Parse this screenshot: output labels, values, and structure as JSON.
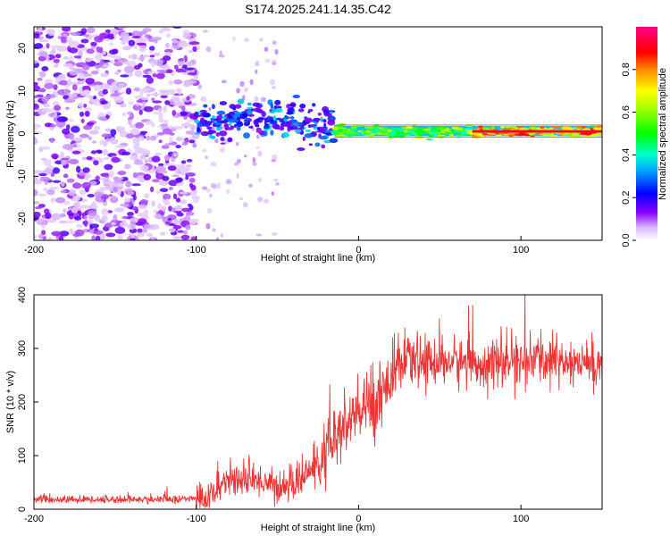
{
  "title": "S174.2025.241.14.35.C42",
  "chart_data": [
    {
      "type": "heatmap",
      "name": "spectrogram",
      "xlabel": "Height of straight line (km)",
      "ylabel": "Frequency (Hz)",
      "xlim": [
        -200,
        150
      ],
      "ylim": [
        -25,
        25
      ],
      "xticks": [
        -200,
        -100,
        0,
        100
      ],
      "xtick_labels": [
        "-200",
        "-100",
        "0",
        "100"
      ],
      "yticks": [
        -20,
        -10,
        0,
        10,
        20
      ],
      "ytick_labels": [
        "-20",
        "-10",
        "0",
        "10",
        "20"
      ],
      "colorbar": {
        "label": "Normalized spectral amplitude",
        "range": [
          0,
          1
        ],
        "ticks": [
          0.0,
          0.2,
          0.4,
          0.6,
          0.8
        ],
        "tick_labels": [
          "0.0",
          "0.2",
          "0.4",
          "0.6",
          "0.8"
        ],
        "colormap": "rainbow: white-violet-blue-cyan-green-yellow-red-pink"
      },
      "regions": [
        {
          "description": "diffuse noise",
          "x_range": [
            -200,
            -100
          ],
          "amplitude_range": [
            0.05,
            0.15
          ]
        },
        {
          "description": "scattered echoes near +3 Hz",
          "x_range": [
            -100,
            -15
          ],
          "freq_center": 3,
          "amplitude_range": [
            0.15,
            0.3
          ]
        },
        {
          "description": "narrow band near +0.5 Hz",
          "x_range": [
            -15,
            150
          ],
          "freq_center": 0.5,
          "amplitude_range": [
            0.4,
            1.0
          ]
        }
      ]
    },
    {
      "type": "line",
      "name": "snr",
      "xlabel": "Height of straight line (km)",
      "ylabel": "SNR (10 * v/v)",
      "xlim": [
        -200,
        150
      ],
      "ylim": [
        0,
        400
      ],
      "xticks": [
        -200,
        -100,
        0,
        100
      ],
      "xtick_labels": [
        "-200",
        "-100",
        "0",
        "100"
      ],
      "yticks": [
        0,
        100,
        200,
        300,
        400
      ],
      "ytick_labels": [
        "0",
        "100",
        "200",
        "300",
        "400"
      ],
      "color": "#ee3333",
      "series": [
        {
          "name": "SNR",
          "x": [
            -200,
            -180,
            -160,
            -140,
            -120,
            -100,
            -90,
            -80,
            -70,
            -60,
            -50,
            -40,
            -30,
            -20,
            -15,
            -10,
            -5,
            0,
            10,
            20,
            30,
            40,
            60,
            80,
            100,
            120,
            140,
            150
          ],
          "values": [
            18,
            18,
            18,
            18,
            18,
            20,
            25,
            60,
            50,
            55,
            40,
            45,
            70,
            100,
            130,
            150,
            160,
            180,
            200,
            250,
            275,
            275,
            275,
            270,
            275,
            280,
            270,
            270
          ]
        }
      ]
    }
  ]
}
